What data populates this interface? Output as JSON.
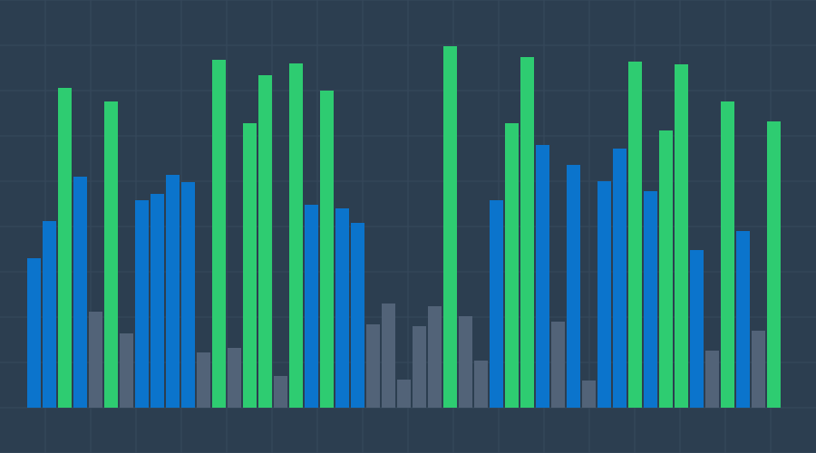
{
  "chart_data": {
    "type": "bar",
    "title": "",
    "xlabel": "",
    "ylabel": "",
    "ylim": [
      0,
      450
    ],
    "grid": true,
    "colors": {
      "background": "#2c3e50",
      "grid": "#36495c",
      "blue": "#0b74cc",
      "green": "#2ecc71",
      "gray": "#526378"
    },
    "bars": [
      {
        "v": 165,
        "c": "blue"
      },
      {
        "v": 206,
        "c": "blue"
      },
      {
        "v": 353,
        "c": "green"
      },
      {
        "v": 255,
        "c": "blue"
      },
      {
        "v": 106,
        "c": "gray"
      },
      {
        "v": 338,
        "c": "green"
      },
      {
        "v": 82,
        "c": "gray"
      },
      {
        "v": 229,
        "c": "blue"
      },
      {
        "v": 236,
        "c": "blue"
      },
      {
        "v": 257,
        "c": "blue"
      },
      {
        "v": 249,
        "c": "blue"
      },
      {
        "v": 61,
        "c": "gray"
      },
      {
        "v": 384,
        "c": "green"
      },
      {
        "v": 66,
        "c": "gray"
      },
      {
        "v": 314,
        "c": "green"
      },
      {
        "v": 367,
        "c": "green"
      },
      {
        "v": 35,
        "c": "gray"
      },
      {
        "v": 380,
        "c": "green"
      },
      {
        "v": 224,
        "c": "blue"
      },
      {
        "v": 350,
        "c": "green"
      },
      {
        "v": 220,
        "c": "blue"
      },
      {
        "v": 204,
        "c": "blue"
      },
      {
        "v": 92,
        "c": "gray"
      },
      {
        "v": 115,
        "c": "gray"
      },
      {
        "v": 31,
        "c": "gray"
      },
      {
        "v": 90,
        "c": "gray"
      },
      {
        "v": 112,
        "c": "gray"
      },
      {
        "v": 399,
        "c": "green"
      },
      {
        "v": 101,
        "c": "gray"
      },
      {
        "v": 52,
        "c": "gray"
      },
      {
        "v": 229,
        "c": "blue"
      },
      {
        "v": 314,
        "c": "green"
      },
      {
        "v": 387,
        "c": "green"
      },
      {
        "v": 290,
        "c": "blue"
      },
      {
        "v": 95,
        "c": "gray"
      },
      {
        "v": 268,
        "c": "blue"
      },
      {
        "v": 30,
        "c": "gray"
      },
      {
        "v": 250,
        "c": "blue"
      },
      {
        "v": 286,
        "c": "blue"
      },
      {
        "v": 382,
        "c": "green"
      },
      {
        "v": 239,
        "c": "blue"
      },
      {
        "v": 306,
        "c": "green"
      },
      {
        "v": 379,
        "c": "green"
      },
      {
        "v": 174,
        "c": "blue"
      },
      {
        "v": 63,
        "c": "gray"
      },
      {
        "v": 338,
        "c": "green"
      },
      {
        "v": 195,
        "c": "blue"
      },
      {
        "v": 85,
        "c": "gray"
      },
      {
        "v": 316,
        "c": "green"
      }
    ]
  }
}
